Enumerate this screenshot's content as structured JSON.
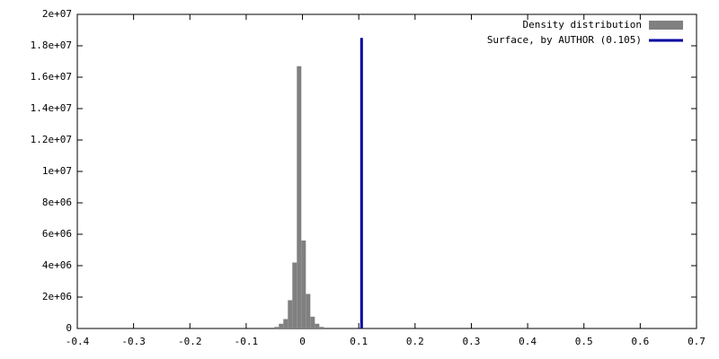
{
  "chart_data": {
    "type": "histogram",
    "bins": [
      -0.05,
      -0.042,
      -0.034,
      -0.026,
      -0.018,
      -0.01,
      -0.002,
      0.006,
      0.014,
      0.022,
      0.03,
      0.038
    ],
    "series": [
      {
        "name": "Density distribution",
        "color": "#808080",
        "values": [
          100000,
          300000,
          600000,
          1800000,
          4200000,
          16700000,
          5600000,
          2200000,
          750000,
          300000,
          100000
        ]
      }
    ],
    "overlays": [
      {
        "type": "line",
        "name": "Surface, by AUTHOR (0.105)",
        "color": "#0000a0",
        "x": [
          0.105,
          0.105
        ],
        "values": [
          0,
          18500000
        ]
      }
    ],
    "xlim": [
      -0.4,
      0.7
    ],
    "xticks": [
      -0.4,
      -0.3,
      -0.2,
      -0.1,
      0,
      0.1,
      0.2,
      0.3,
      0.4,
      0.5,
      0.6,
      0.7
    ],
    "ylim": [
      0,
      20000000
    ],
    "yticks": [
      0,
      {
        "value": 2000000,
        "label": "2e+06"
      },
      {
        "value": 4000000,
        "label": "4e+06"
      },
      {
        "value": 6000000,
        "label": "6e+06"
      },
      {
        "value": 8000000,
        "label": "8e+06"
      },
      {
        "value": 10000000,
        "label": "1e+07"
      },
      {
        "value": 12000000,
        "label": "1.2e+07"
      },
      {
        "value": 14000000,
        "label": "1.4e+07"
      },
      {
        "value": 16000000,
        "label": "1.6e+07"
      },
      {
        "value": 18000000,
        "label": "1.8e+07"
      },
      {
        "value": 20000000,
        "label": "2e+07"
      }
    ],
    "grid": false,
    "legend": "top-right"
  }
}
